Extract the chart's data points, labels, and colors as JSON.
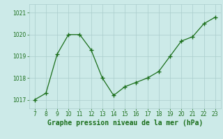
{
  "x": [
    7,
    8,
    9,
    10,
    11,
    12,
    13,
    14,
    15,
    16,
    17,
    18,
    19,
    20,
    21,
    22,
    23
  ],
  "y": [
    1017.0,
    1017.3,
    1019.1,
    1020.0,
    1020.0,
    1019.3,
    1018.0,
    1017.2,
    1017.6,
    1017.8,
    1018.0,
    1018.3,
    1019.0,
    1019.7,
    1019.9,
    1020.5,
    1020.8
  ],
  "line_color": "#1a6e1a",
  "marker_color": "#1a6e1a",
  "bg_color": "#cceae8",
  "grid_color": "#aacccc",
  "xlabel": "Graphe pression niveau de la mer (hPa)",
  "xlabel_color": "#1a6e1a",
  "ylabel_ticks": [
    1017,
    1018,
    1019,
    1020,
    1021
  ],
  "xlim": [
    6.5,
    23.5
  ],
  "ylim": [
    1016.6,
    1021.4
  ],
  "xticks": [
    7,
    8,
    9,
    10,
    11,
    12,
    13,
    14,
    15,
    16,
    17,
    18,
    19,
    20,
    21,
    22,
    23
  ],
  "tick_color": "#1a6e1a",
  "tick_fontsize": 5.5,
  "xlabel_fontsize": 7.0
}
